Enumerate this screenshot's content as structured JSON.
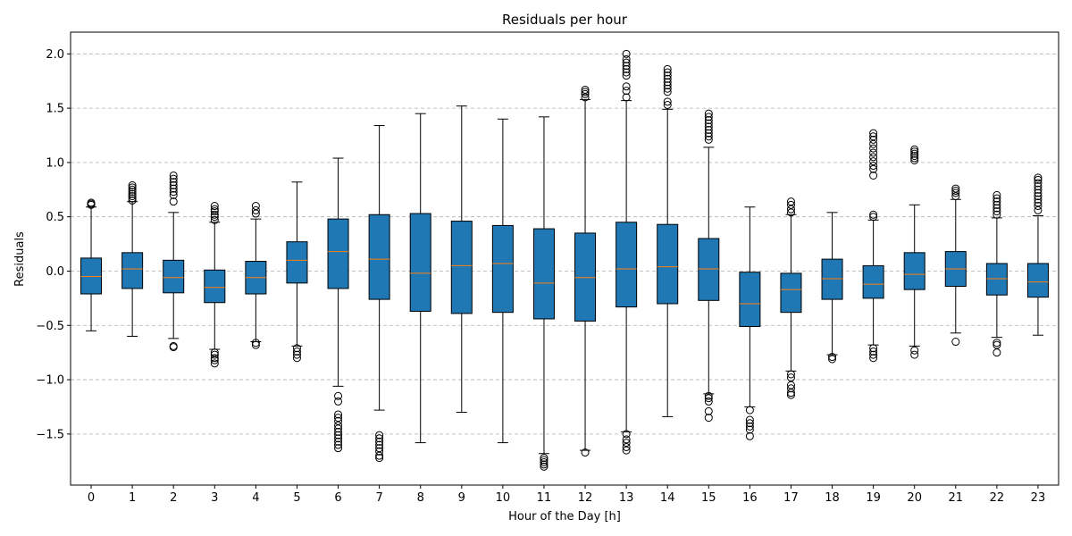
{
  "chart_data": {
    "type": "box",
    "title": "Residuals per hour",
    "xlabel": "Hour of the Day [h]",
    "ylabel": "Residuals",
    "categories": [
      "0",
      "1",
      "2",
      "3",
      "4",
      "5",
      "6",
      "7",
      "8",
      "9",
      "10",
      "11",
      "12",
      "13",
      "14",
      "15",
      "16",
      "17",
      "18",
      "19",
      "20",
      "21",
      "22",
      "23"
    ],
    "ylim": [
      -1.97,
      2.2
    ],
    "yticks": [
      -1.5,
      -1.0,
      -0.5,
      0.0,
      0.5,
      1.0,
      1.5,
      2.0
    ],
    "ytick_labels": [
      "−1.5",
      "−1.0",
      "−0.5",
      "0.0",
      "0.5",
      "1.0",
      "1.5",
      "2.0"
    ],
    "grid": "y-dashed",
    "colors": {
      "box_fill": "#1f77b4",
      "median": "#ff7f0e",
      "grid": "#b0b0b0",
      "axis": "#000000"
    },
    "boxes": [
      {
        "q1": -0.21,
        "median": -0.05,
        "q3": 0.12,
        "whisker_low": -0.55,
        "whisker_high": 0.59,
        "fliers": [
          0.61,
          0.62,
          0.63
        ]
      },
      {
        "q1": -0.16,
        "median": 0.02,
        "q3": 0.17,
        "whisker_low": -0.6,
        "whisker_high": 0.64,
        "fliers": [
          0.65,
          0.67,
          0.69,
          0.71,
          0.73,
          0.75,
          0.77,
          0.79
        ]
      },
      {
        "q1": -0.2,
        "median": -0.06,
        "q3": 0.1,
        "whisker_low": -0.62,
        "whisker_high": 0.54,
        "fliers": [
          -0.7,
          -0.69,
          0.64,
          0.7,
          0.73,
          0.76,
          0.79,
          0.82,
          0.85,
          0.88
        ]
      },
      {
        "q1": -0.29,
        "median": -0.15,
        "q3": 0.01,
        "whisker_low": -0.72,
        "whisker_high": 0.45,
        "fliers": [
          -0.85,
          -0.82,
          -0.8,
          -0.77,
          -0.75,
          0.47,
          0.5,
          0.52,
          0.55,
          0.57,
          0.6
        ]
      },
      {
        "q1": -0.21,
        "median": -0.06,
        "q3": 0.09,
        "whisker_low": -0.65,
        "whisker_high": 0.48,
        "fliers": [
          -0.68,
          -0.66,
          0.53,
          0.56,
          0.6
        ]
      },
      {
        "q1": -0.11,
        "median": 0.1,
        "q3": 0.27,
        "whisker_low": -0.69,
        "whisker_high": 0.82,
        "fliers": [
          -0.8,
          -0.77,
          -0.74,
          -0.71
        ]
      },
      {
        "q1": -0.16,
        "median": 0.18,
        "q3": 0.48,
        "whisker_low": -1.06,
        "whisker_high": 1.04,
        "fliers": [
          -1.63,
          -1.6,
          -1.57,
          -1.54,
          -1.51,
          -1.48,
          -1.45,
          -1.42,
          -1.38,
          -1.35,
          -1.32,
          -1.2,
          -1.15
        ]
      },
      {
        "q1": -0.26,
        "median": 0.11,
        "q3": 0.52,
        "whisker_low": -1.28,
        "whisker_high": 1.34,
        "fliers": [
          -1.72,
          -1.7,
          -1.66,
          -1.63,
          -1.6,
          -1.57,
          -1.54,
          -1.51
        ]
      },
      {
        "q1": -0.37,
        "median": -0.02,
        "q3": 0.53,
        "whisker_low": -1.58,
        "whisker_high": 1.45,
        "fliers": []
      },
      {
        "q1": -0.39,
        "median": 0.05,
        "q3": 0.46,
        "whisker_low": -1.3,
        "whisker_high": 1.52,
        "fliers": []
      },
      {
        "q1": -0.38,
        "median": 0.07,
        "q3": 0.42,
        "whisker_low": -1.58,
        "whisker_high": 1.4,
        "fliers": []
      },
      {
        "q1": -0.44,
        "median": -0.11,
        "q3": 0.39,
        "whisker_low": -1.68,
        "whisker_high": 1.42,
        "fliers": [
          -1.8,
          -1.78,
          -1.76,
          -1.74,
          -1.72
        ]
      },
      {
        "q1": -0.46,
        "median": -0.06,
        "q3": 0.35,
        "whisker_low": -1.65,
        "whisker_high": 1.58,
        "fliers": [
          -1.67,
          1.6,
          1.63,
          1.65,
          1.67
        ]
      },
      {
        "q1": -0.33,
        "median": 0.02,
        "q3": 0.45,
        "whisker_low": -1.48,
        "whisker_high": 1.57,
        "fliers": [
          -1.65,
          -1.62,
          -1.58,
          -1.55,
          -1.5,
          1.6,
          1.66,
          1.7,
          1.8,
          1.83,
          1.86,
          1.89,
          1.92,
          1.95,
          2.0
        ]
      },
      {
        "q1": -0.3,
        "median": 0.04,
        "q3": 0.43,
        "whisker_low": -1.34,
        "whisker_high": 1.49,
        "fliers": [
          1.53,
          1.56,
          1.65,
          1.68,
          1.71,
          1.74,
          1.77,
          1.8,
          1.83,
          1.86
        ]
      },
      {
        "q1": -0.27,
        "median": 0.02,
        "q3": 0.3,
        "whisker_low": -1.13,
        "whisker_high": 1.14,
        "fliers": [
          -1.35,
          -1.29,
          -1.2,
          -1.17,
          -1.15,
          1.21,
          1.24,
          1.27,
          1.3,
          1.33,
          1.36,
          1.39,
          1.42,
          1.45
        ]
      },
      {
        "q1": -0.51,
        "median": -0.3,
        "q3": -0.01,
        "whisker_low": -1.25,
        "whisker_high": 0.59,
        "fliers": [
          -1.52,
          -1.46,
          -1.43,
          -1.4,
          -1.37,
          -1.28
        ]
      },
      {
        "q1": -0.38,
        "median": -0.17,
        "q3": -0.02,
        "whisker_low": -0.92,
        "whisker_high": 0.52,
        "fliers": [
          -1.14,
          -1.12,
          -1.08,
          -1.05,
          -0.98,
          -0.95,
          0.54,
          0.57,
          0.61,
          0.64
        ]
      },
      {
        "q1": -0.26,
        "median": -0.07,
        "q3": 0.11,
        "whisker_low": -0.77,
        "whisker_high": 0.54,
        "fliers": [
          -0.81,
          -0.79
        ]
      },
      {
        "q1": -0.25,
        "median": -0.12,
        "q3": 0.05,
        "whisker_low": -0.68,
        "whisker_high": 0.47,
        "fliers": [
          -0.8,
          -0.77,
          -0.74,
          -0.71,
          0.5,
          0.52,
          0.88,
          0.94,
          0.97,
          1.01,
          1.05,
          1.09,
          1.13,
          1.17,
          1.21,
          1.24,
          1.27
        ]
      },
      {
        "q1": -0.17,
        "median": -0.03,
        "q3": 0.17,
        "whisker_low": -0.69,
        "whisker_high": 0.61,
        "fliers": [
          -0.77,
          -0.73,
          1.02,
          1.04,
          1.06,
          1.08,
          1.1,
          1.12
        ]
      },
      {
        "q1": -0.14,
        "median": 0.02,
        "q3": 0.18,
        "whisker_low": -0.57,
        "whisker_high": 0.66,
        "fliers": [
          -0.65,
          0.69,
          0.72,
          0.74,
          0.76
        ]
      },
      {
        "q1": -0.22,
        "median": -0.07,
        "q3": 0.07,
        "whisker_low": -0.61,
        "whisker_high": 0.49,
        "fliers": [
          -0.75,
          -0.68,
          -0.66,
          0.52,
          0.55,
          0.58,
          0.61,
          0.64,
          0.67,
          0.7
        ]
      },
      {
        "q1": -0.24,
        "median": -0.1,
        "q3": 0.07,
        "whisker_low": -0.59,
        "whisker_high": 0.51,
        "fliers": [
          0.56,
          0.6,
          0.63,
          0.66,
          0.69,
          0.72,
          0.75,
          0.78,
          0.81,
          0.84,
          0.86
        ]
      }
    ]
  }
}
